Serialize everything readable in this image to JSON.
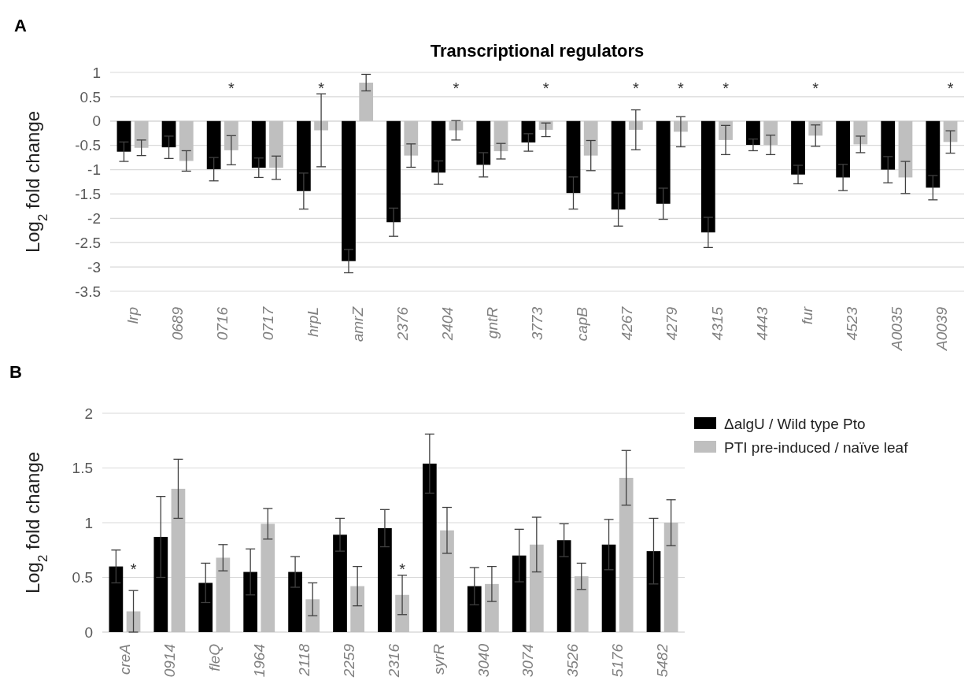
{
  "chart_data": [
    {
      "type": "bar",
      "title": "Transcriptional regulators",
      "ylabel": "Log$_{2}$ fold change",
      "categories": [
        "lrp",
        "0689",
        "0716",
        "0717",
        "hrpL",
        "amrZ",
        "2376",
        "2404",
        "gntR",
        "3773",
        "capB",
        "4267",
        "4279",
        "4315",
        "4443",
        "fur",
        "4523",
        "A0035",
        "A0039"
      ],
      "series": [
        {
          "color": "#000000",
          "values": [
            -0.63,
            -0.54,
            -0.99,
            -0.96,
            -1.44,
            -2.88,
            -2.08,
            -1.06,
            -0.9,
            -0.44,
            -1.48,
            -1.82,
            -1.7,
            -2.29,
            -0.49,
            -1.1,
            -1.16,
            -1.0,
            -1.37
          ],
          "errors": [
            0.2,
            0.23,
            0.24,
            0.2,
            0.37,
            0.24,
            0.29,
            0.24,
            0.25,
            0.18,
            0.33,
            0.34,
            0.32,
            0.31,
            0.12,
            0.19,
            0.27,
            0.27,
            0.25
          ]
        },
        {
          "color": "#bfbfbf",
          "values": [
            -0.55,
            -0.82,
            -0.6,
            -0.96,
            -0.19,
            0.79,
            -0.71,
            -0.19,
            -0.62,
            -0.18,
            -0.71,
            -0.18,
            -0.22,
            -0.39,
            -0.49,
            -0.3,
            -0.48,
            -1.16,
            -0.43
          ],
          "errors": [
            0.16,
            0.21,
            0.3,
            0.24,
            0.75,
            0.17,
            0.24,
            0.2,
            0.16,
            0.14,
            0.31,
            0.41,
            0.31,
            0.3,
            0.2,
            0.22,
            0.17,
            0.33,
            0.23
          ],
          "value_labels": [
            null,
            null,
            "*",
            null,
            "*",
            null,
            null,
            "*",
            null,
            "*",
            null,
            "*",
            "*",
            "*",
            null,
            "*",
            null,
            null,
            "*"
          ]
        }
      ],
      "ylim": [
        -3.5,
        1
      ],
      "yticks": [
        -3.5,
        -3,
        -2.5,
        -2,
        -1.5,
        -1,
        -0.5,
        0,
        0.5,
        1
      ],
      "grid": "y",
      "annotations": [
        "A"
      ]
    },
    {
      "type": "bar",
      "ylabel": "Log$_{2}$ fold change",
      "categories": [
        "creA",
        "0914",
        "fleQ",
        "1964",
        "2118",
        "2259",
        "2316",
        "syrR",
        "3040",
        "3074",
        "3526",
        "5176",
        "5482"
      ],
      "series": [
        {
          "name": "ΔalgU / Wild type Pto",
          "color": "#000000",
          "values": [
            0.6,
            0.87,
            0.45,
            0.55,
            0.55,
            0.89,
            0.95,
            1.54,
            0.42,
            0.7,
            0.84,
            0.8,
            0.74
          ],
          "errors": [
            0.15,
            0.37,
            0.18,
            0.21,
            0.14,
            0.15,
            0.17,
            0.27,
            0.17,
            0.24,
            0.15,
            0.23,
            0.3
          ]
        },
        {
          "name": "PTI pre-induced  / naïve  leaf",
          "color": "#bfbfbf",
          "values": [
            0.19,
            1.31,
            0.68,
            0.99,
            0.3,
            0.42,
            0.34,
            0.93,
            0.44,
            0.8,
            0.51,
            1.41,
            1.0
          ],
          "errors": [
            0.19,
            0.27,
            0.12,
            0.14,
            0.15,
            0.18,
            0.18,
            0.21,
            0.16,
            0.25,
            0.12,
            0.25,
            0.21
          ]
        }
      ],
      "ylim": [
        0,
        2
      ],
      "yticks": [
        0,
        0.5,
        1,
        1.5,
        2
      ],
      "grid": "y",
      "legend": "top right",
      "annotations": [
        "B",
        {
          "text": "*",
          "x": "creA",
          "y": 0.58
        },
        {
          "text": "*",
          "x": "2316",
          "y": 0.58
        }
      ]
    }
  ]
}
